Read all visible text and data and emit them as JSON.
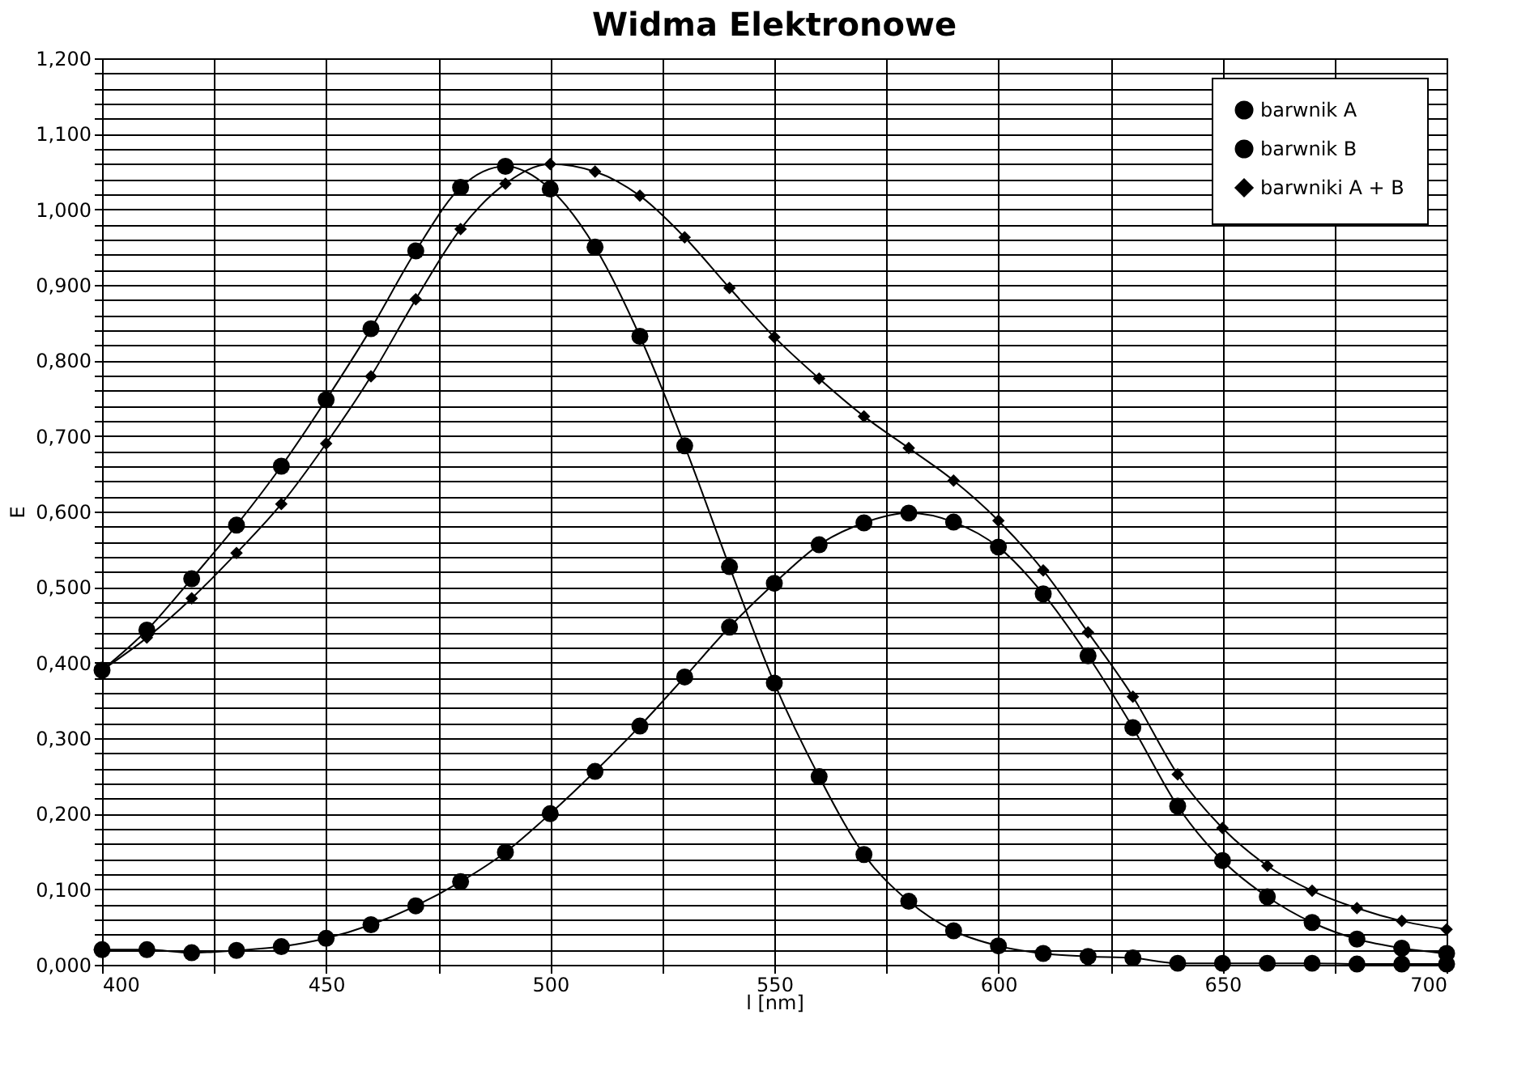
{
  "chart_data": {
    "type": "line",
    "title": "Widma Elektronowe",
    "xlabel": "l [nm]",
    "ylabel": "E",
    "x": [
      400,
      410,
      420,
      430,
      440,
      450,
      460,
      470,
      480,
      490,
      500,
      510,
      520,
      530,
      540,
      550,
      560,
      570,
      580,
      590,
      600,
      610,
      620,
      630,
      640,
      650,
      660,
      670,
      680,
      690,
      700
    ],
    "series": [
      {
        "name": "barwnik A",
        "color": "#000000",
        "marker": "circle",
        "values": [
          0.39,
          0.443,
          0.511,
          0.582,
          0.66,
          0.748,
          0.842,
          0.945,
          1.029,
          1.057,
          1.027,
          0.95,
          0.832,
          0.687,
          0.527,
          0.373,
          0.249,
          0.146,
          0.084,
          0.045,
          0.025,
          0.015,
          0.011,
          0.009,
          0.002,
          0.002,
          0.002,
          0.002,
          0.001,
          0.001,
          0.001
        ]
      },
      {
        "name": "barwnik B",
        "color": "#000000",
        "marker": "circle",
        "values": [
          0.02,
          0.02,
          0.016,
          0.019,
          0.024,
          0.035,
          0.053,
          0.078,
          0.11,
          0.149,
          0.2,
          0.256,
          0.316,
          0.381,
          0.447,
          0.505,
          0.556,
          0.585,
          0.598,
          0.586,
          0.553,
          0.491,
          0.409,
          0.314,
          0.21,
          0.138,
          0.09,
          0.056,
          0.034,
          0.022,
          0.015
        ]
      },
      {
        "name": "barwniki A + B",
        "color": "#000000",
        "marker": "diamond",
        "values": [
          0.39,
          0.433,
          0.485,
          0.545,
          0.61,
          0.69,
          0.779,
          0.881,
          0.974,
          1.034,
          1.06,
          1.05,
          1.018,
          0.963,
          0.896,
          0.831,
          0.776,
          0.726,
          0.684,
          0.641,
          0.588,
          0.522,
          0.44,
          0.355,
          0.252,
          0.181,
          0.131,
          0.098,
          0.075,
          0.058,
          0.047
        ]
      }
    ],
    "xlim": [
      400,
      700
    ],
    "xticks": [
      400,
      {
        "value": 425,
        "label": null
      },
      450,
      {
        "value": 475,
        "label": null
      },
      500,
      {
        "value": 525,
        "label": null
      },
      550,
      {
        "value": 575,
        "label": null
      },
      600,
      {
        "value": 625,
        "label": null
      },
      650,
      {
        "value": 675,
        "label": null
      },
      700
    ],
    "ylim": [
      0,
      1.2
    ],
    "yticks": [
      {
        "value": 0,
        "label": "0,000"
      },
      {
        "value": 0.02,
        "label": null
      },
      {
        "value": 0.04,
        "label": null
      },
      {
        "value": 0.06,
        "label": null
      },
      {
        "value": 0.08,
        "label": null
      },
      {
        "value": 0.1,
        "label": "0,100"
      },
      {
        "value": 0.12,
        "label": null
      },
      {
        "value": 0.14,
        "label": null
      },
      {
        "value": 0.16,
        "label": null
      },
      {
        "value": 0.18,
        "label": null
      },
      {
        "value": 0.2,
        "label": "0,200"
      },
      {
        "value": 0.22,
        "label": null
      },
      {
        "value": 0.24,
        "label": null
      },
      {
        "value": 0.26,
        "label": null
      },
      {
        "value": 0.28,
        "label": null
      },
      {
        "value": 0.3,
        "label": "0,300"
      },
      {
        "value": 0.32,
        "label": null
      },
      {
        "value": 0.34,
        "label": null
      },
      {
        "value": 0.36,
        "label": null
      },
      {
        "value": 0.38,
        "label": null
      },
      {
        "value": 0.4,
        "label": "0,400"
      },
      {
        "value": 0.42,
        "label": null
      },
      {
        "value": 0.44,
        "label": null
      },
      {
        "value": 0.46,
        "label": null
      },
      {
        "value": 0.48,
        "label": null
      },
      {
        "value": 0.5,
        "label": "0,500"
      },
      {
        "value": 0.52,
        "label": null
      },
      {
        "value": 0.54,
        "label": null
      },
      {
        "value": 0.56,
        "label": null
      },
      {
        "value": 0.58,
        "label": null
      },
      {
        "value": 0.6,
        "label": "0,600"
      },
      {
        "value": 0.62,
        "label": null
      },
      {
        "value": 0.64,
        "label": null
      },
      {
        "value": 0.66,
        "label": null
      },
      {
        "value": 0.68,
        "label": null
      },
      {
        "value": 0.7,
        "label": "0,700"
      },
      {
        "value": 0.72,
        "label": null
      },
      {
        "value": 0.74,
        "label": null
      },
      {
        "value": 0.76,
        "label": null
      },
      {
        "value": 0.78,
        "label": null
      },
      {
        "value": 0.8,
        "label": "0,800"
      },
      {
        "value": 0.82,
        "label": null
      },
      {
        "value": 0.84,
        "label": null
      },
      {
        "value": 0.86,
        "label": null
      },
      {
        "value": 0.88,
        "label": null
      },
      {
        "value": 0.9,
        "label": "0,900"
      },
      {
        "value": 0.92,
        "label": null
      },
      {
        "value": 0.94,
        "label": null
      },
      {
        "value": 0.96,
        "label": null
      },
      {
        "value": 0.98,
        "label": null
      },
      {
        "value": 1.0,
        "label": "1,000"
      },
      {
        "value": 1.02,
        "label": null
      },
      {
        "value": 1.04,
        "label": null
      },
      {
        "value": 1.06,
        "label": null
      },
      {
        "value": 1.08,
        "label": null
      },
      {
        "value": 1.1,
        "label": "1,100"
      },
      {
        "value": 1.12,
        "label": null
      },
      {
        "value": 1.14,
        "label": null
      },
      {
        "value": 1.16,
        "label": null
      },
      {
        "value": 1.18,
        "label": null
      },
      {
        "value": 1.2,
        "label": "1,200"
      }
    ],
    "grid": true,
    "legend": "top right",
    "line_style": "solid"
  }
}
